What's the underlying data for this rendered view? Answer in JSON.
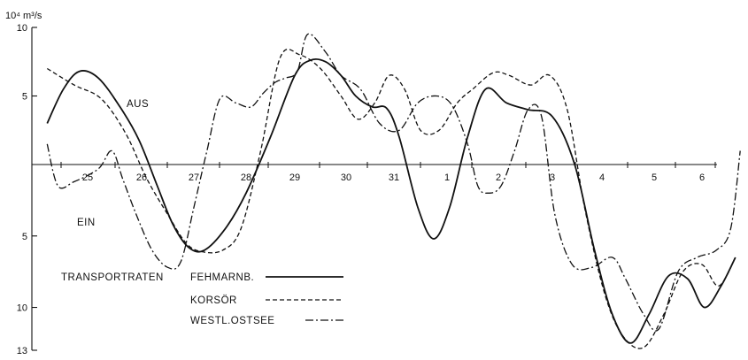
{
  "chart_data": {
    "type": "line",
    "y_unit_label": "10⁴ m³/s",
    "y_ticks_top": [
      "10",
      "5"
    ],
    "y_ticks_bottom": [
      "5",
      "10",
      "13"
    ],
    "y_tick_values": [
      10,
      5,
      -5,
      -10,
      -13
    ],
    "ylim": [
      -13,
      10
    ],
    "region_labels": {
      "upper": "AUS",
      "lower": "EIN"
    },
    "x_tick_labels": [
      "25",
      "26",
      "27",
      "28",
      "29",
      "30",
      "31",
      "1",
      "2",
      "3",
      "4",
      "5",
      "6"
    ],
    "xlim": [
      24.25,
      37.85
    ],
    "grid": false,
    "legend": {
      "title": "TRANSPORTRATEN",
      "placement": "bottom-left"
    },
    "series": [
      {
        "name": "FEHMARNB.",
        "style": "solid",
        "x": [
          24.25,
          24.55,
          24.85,
          25.2,
          25.6,
          25.95,
          26.3,
          26.6,
          26.9,
          27.2,
          27.6,
          28.0,
          28.5,
          29.0,
          29.3,
          29.6,
          29.9,
          30.2,
          30.55,
          30.85,
          31.1,
          31.45,
          31.75,
          32.05,
          32.4,
          32.75,
          33.15,
          33.55,
          34.0,
          34.45,
          34.85,
          35.2,
          35.55,
          35.9,
          36.3,
          36.7,
          37.05,
          37.4,
          37.7
        ],
        "y": [
          3.0,
          5.5,
          6.8,
          6.3,
          4.2,
          1.8,
          -1.5,
          -4.2,
          -5.8,
          -6.0,
          -4.5,
          -2.0,
          2.0,
          6.5,
          7.6,
          7.5,
          6.5,
          5.0,
          4.2,
          4.1,
          2.0,
          -3.0,
          -5.2,
          -3.0,
          2.0,
          5.5,
          4.5,
          4.0,
          3.5,
          0.0,
          -6.0,
          -10.5,
          -12.5,
          -10.5,
          -7.8,
          -8.0,
          -10.0,
          -8.5,
          -6.5
        ]
      },
      {
        "name": "KORSÖR",
        "style": "dashed",
        "x": [
          24.25,
          24.75,
          25.25,
          25.7,
          26.1,
          26.5,
          26.85,
          27.15,
          27.55,
          27.9,
          28.3,
          28.7,
          29.1,
          29.5,
          29.9,
          30.25,
          30.6,
          30.9,
          31.2,
          31.5,
          31.85,
          32.2,
          32.5,
          32.9,
          33.2,
          33.6,
          33.95,
          34.3,
          34.65,
          35.05,
          35.4,
          35.8,
          36.2,
          36.6,
          37.0,
          37.35,
          37.7
        ],
        "y": [
          7.0,
          5.8,
          4.8,
          2.3,
          -1.0,
          -3.5,
          -5.5,
          -6.1,
          -6.0,
          -4.5,
          1.0,
          7.8,
          8.0,
          7.0,
          5.0,
          3.3,
          4.5,
          6.5,
          5.5,
          2.5,
          2.5,
          4.5,
          5.5,
          6.7,
          6.5,
          5.8,
          6.5,
          4.0,
          -3.0,
          -9.0,
          -12.0,
          -12.8,
          -10.5,
          -7.5,
          -7.0,
          -8.5,
          -6.5
        ]
      },
      {
        "name": "WESTL.OSTSEE",
        "style": "dashdot",
        "x": [
          24.25,
          24.45,
          24.75,
          25.2,
          25.45,
          25.65,
          25.9,
          26.2,
          26.5,
          26.75,
          27.0,
          27.25,
          27.5,
          27.8,
          28.1,
          28.35,
          28.6,
          28.8,
          29.05,
          29.25,
          29.6,
          29.9,
          30.3,
          30.7,
          31.1,
          31.45,
          31.8,
          32.1,
          32.4,
          32.6,
          32.8,
          33.05,
          33.3,
          33.55,
          33.8,
          34.05,
          34.4,
          34.8,
          35.2,
          35.45,
          35.8,
          36.1,
          36.5,
          36.9,
          37.3,
          37.6,
          37.8
        ],
        "y": [
          1.5,
          -1.5,
          -1.2,
          -0.3,
          1.0,
          -1.0,
          -3.5,
          -6.0,
          -7.2,
          -6.8,
          -3.0,
          1.0,
          4.8,
          4.5,
          4.2,
          5.2,
          6.0,
          6.3,
          6.8,
          9.5,
          8.2,
          6.5,
          5.5,
          3.0,
          2.5,
          4.5,
          5.0,
          4.3,
          1.5,
          -1.5,
          -2.0,
          -1.5,
          1.0,
          4.0,
          3.5,
          -3.5,
          -7.0,
          -7.2,
          -6.5,
          -8.0,
          -10.5,
          -11.5,
          -7.5,
          -6.5,
          -6.0,
          -4.5,
          1.0
        ]
      }
    ]
  }
}
